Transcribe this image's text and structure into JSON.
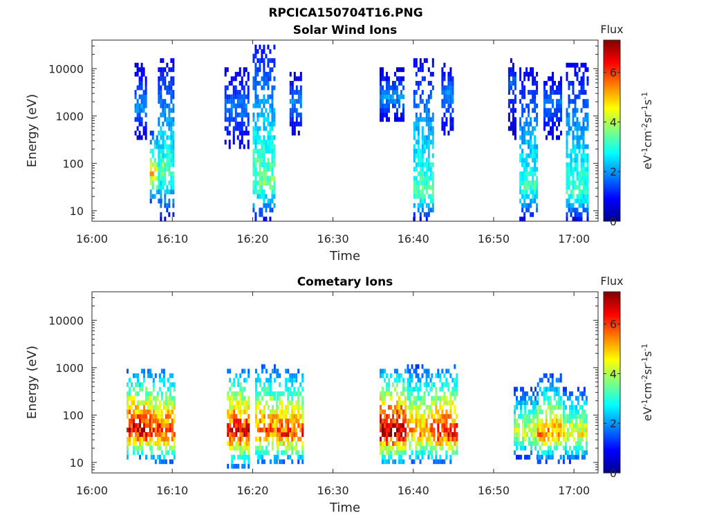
{
  "figure_title": "RPCICA150704T16.PNG",
  "chart_data": [
    {
      "type": "heatmap",
      "title": "Solar Wind Ions",
      "xlabel": "Time",
      "ylabel": "Energy (eV)",
      "x_ticks": [
        "16:00",
        "16:10",
        "16:20",
        "16:30",
        "16:40",
        "16:50",
        "17:00"
      ],
      "x_tick_minutes": [
        0,
        10,
        20,
        30,
        40,
        50,
        60
      ],
      "xlim_minutes": [
        0,
        63
      ],
      "yscale": "log",
      "ylim": [
        6,
        40000
      ],
      "y_ticks": [
        "10",
        "100",
        "1000",
        "10000"
      ],
      "y_tick_values": [
        10,
        100,
        1000,
        10000
      ],
      "colorbar": {
        "title": "Flux",
        "label": "eV-1cm-2sr-1s-1",
        "ticks": [
          "0",
          "2",
          "4",
          "6"
        ],
        "tick_values": [
          0,
          2,
          4,
          6
        ],
        "range": [
          0,
          7.3
        ],
        "colormap": "jet"
      },
      "bursts": [
        {
          "t_start": 5.3,
          "t_end": 6.6,
          "e_low": 350,
          "e_high": 12000,
          "peak_flux": 2.0,
          "peak_energy": 1500
        },
        {
          "t_start": 7.2,
          "t_end": 8.8,
          "e_low": 15,
          "e_high": 500,
          "peak_flux": 4.8,
          "peak_energy": 60
        },
        {
          "t_start": 8.2,
          "t_end": 10.2,
          "e_low": 6,
          "e_high": 15000,
          "peak_flux": 3.2,
          "peak_energy": 60
        },
        {
          "t_start": 16.5,
          "t_end": 19.5,
          "e_low": 200,
          "e_high": 11000,
          "peak_flux": 1.8,
          "peak_energy": 1500
        },
        {
          "t_start": 20.0,
          "t_end": 22.8,
          "e_low": 6,
          "e_high": 35000,
          "peak_flux": 3.5,
          "peak_energy": 40
        },
        {
          "t_start": 24.6,
          "t_end": 26.0,
          "e_low": 400,
          "e_high": 9000,
          "peak_flux": 1.9,
          "peak_energy": 2000
        },
        {
          "t_start": 35.8,
          "t_end": 38.8,
          "e_low": 700,
          "e_high": 10000,
          "peak_flux": 2.0,
          "peak_energy": 2500
        },
        {
          "t_start": 40.0,
          "t_end": 42.5,
          "e_low": 6,
          "e_high": 15000,
          "peak_flux": 3.3,
          "peak_energy": 25
        },
        {
          "t_start": 43.5,
          "t_end": 45.0,
          "e_low": 300,
          "e_high": 12000,
          "peak_flux": 1.9,
          "peak_energy": 3000
        },
        {
          "t_start": 51.8,
          "t_end": 52.8,
          "e_low": 350,
          "e_high": 17000,
          "peak_flux": 1.6,
          "peak_energy": 5000
        },
        {
          "t_start": 53.2,
          "t_end": 55.3,
          "e_low": 6,
          "e_high": 10000,
          "peak_flux": 3.1,
          "peak_energy": 30
        },
        {
          "t_start": 56.2,
          "t_end": 58.4,
          "e_low": 300,
          "e_high": 8000,
          "peak_flux": 1.8,
          "peak_energy": 2000
        },
        {
          "t_start": 59.0,
          "t_end": 61.6,
          "e_low": 6,
          "e_high": 14000,
          "peak_flux": 3.2,
          "peak_energy": 25
        }
      ]
    },
    {
      "type": "heatmap",
      "title": "Cometary Ions",
      "xlabel": "Time",
      "ylabel": "Energy (eV)",
      "x_ticks": [
        "16:00",
        "16:10",
        "16:20",
        "16:30",
        "16:40",
        "16:50",
        "17:00"
      ],
      "x_tick_minutes": [
        0,
        10,
        20,
        30,
        40,
        50,
        60
      ],
      "xlim_minutes": [
        0,
        63
      ],
      "yscale": "log",
      "ylim": [
        6,
        40000
      ],
      "y_ticks": [
        "10",
        "100",
        "1000",
        "10000"
      ],
      "y_tick_values": [
        10,
        100,
        1000,
        10000
      ],
      "colorbar": {
        "title": "Flux",
        "label": "eV-1cm-2sr-1s-1",
        "ticks": [
          "0",
          "2",
          "4",
          "6"
        ],
        "tick_values": [
          0,
          2,
          4,
          6
        ],
        "range": [
          0,
          7.3
        ],
        "colormap": "jet"
      },
      "bursts": [
        {
          "t_start": 4.3,
          "t_end": 7.3,
          "e_low": 12,
          "e_high": 900,
          "peak_flux": 6.8,
          "peak_energy": 45
        },
        {
          "t_start": 7.3,
          "t_end": 10.2,
          "e_low": 10,
          "e_high": 900,
          "peak_flux": 6.2,
          "peak_energy": 45
        },
        {
          "t_start": 16.8,
          "t_end": 19.6,
          "e_low": 8,
          "e_high": 1000,
          "peak_flux": 6.5,
          "peak_energy": 45
        },
        {
          "t_start": 20.3,
          "t_end": 23.0,
          "e_low": 9,
          "e_high": 1200,
          "peak_flux": 5.8,
          "peak_energy": 45
        },
        {
          "t_start": 23.0,
          "t_end": 26.2,
          "e_low": 10,
          "e_high": 1000,
          "peak_flux": 6.0,
          "peak_energy": 40
        },
        {
          "t_start": 35.8,
          "t_end": 39.0,
          "e_low": 9,
          "e_high": 1000,
          "peak_flux": 7.2,
          "peak_energy": 45
        },
        {
          "t_start": 39.2,
          "t_end": 42.2,
          "e_low": 9,
          "e_high": 1100,
          "peak_flux": 5.5,
          "peak_energy": 45
        },
        {
          "t_start": 42.2,
          "t_end": 45.5,
          "e_low": 10,
          "e_high": 1200,
          "peak_flux": 6.3,
          "peak_energy": 40
        },
        {
          "t_start": 52.5,
          "t_end": 55.5,
          "e_low": 12,
          "e_high": 400,
          "peak_flux": 4.4,
          "peak_energy": 40
        },
        {
          "t_start": 55.4,
          "t_end": 58.4,
          "e_low": 10,
          "e_high": 700,
          "peak_flux": 5.4,
          "peak_energy": 40
        },
        {
          "t_start": 58.6,
          "t_end": 61.6,
          "e_low": 10,
          "e_high": 400,
          "peak_flux": 4.6,
          "peak_energy": 40
        }
      ]
    }
  ]
}
